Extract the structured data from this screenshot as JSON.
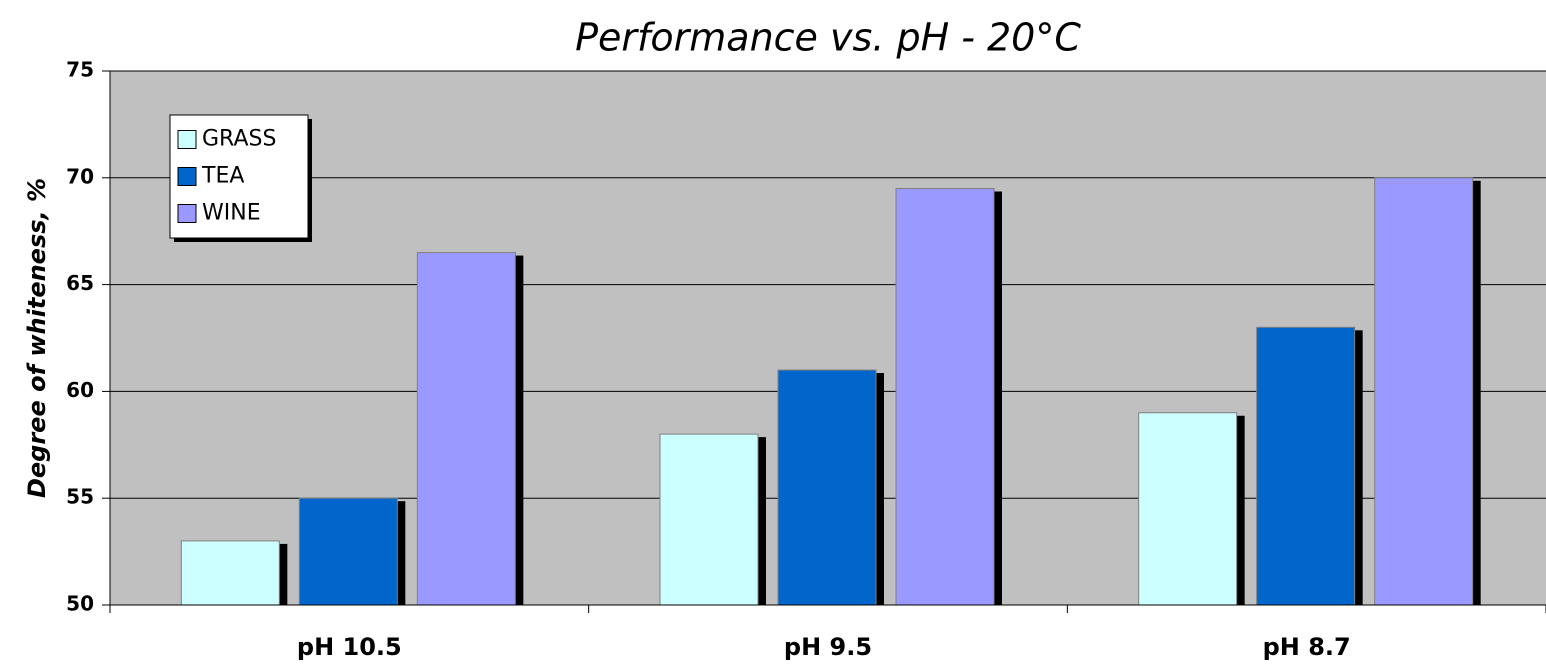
{
  "chart_data": {
    "type": "bar",
    "title": "Performance vs. pH - 20°C",
    "ylabel": "Degree of whiteness, %",
    "categories": [
      "pH 10.5",
      "pH 9.5",
      "pH 8.7"
    ],
    "series": [
      {
        "name": "GRASS",
        "color": "#ccffff",
        "values": [
          53,
          58,
          59
        ]
      },
      {
        "name": "TEA",
        "color": "#0066cc",
        "values": [
          55,
          61,
          63
        ]
      },
      {
        "name": "WINE",
        "color": "#9999ff",
        "values": [
          66.5,
          69.5,
          70
        ]
      }
    ],
    "ylim": [
      50,
      75
    ],
    "yticks": [
      50,
      55,
      60,
      65,
      70,
      75
    ],
    "grid": true,
    "legend": "upper left"
  }
}
